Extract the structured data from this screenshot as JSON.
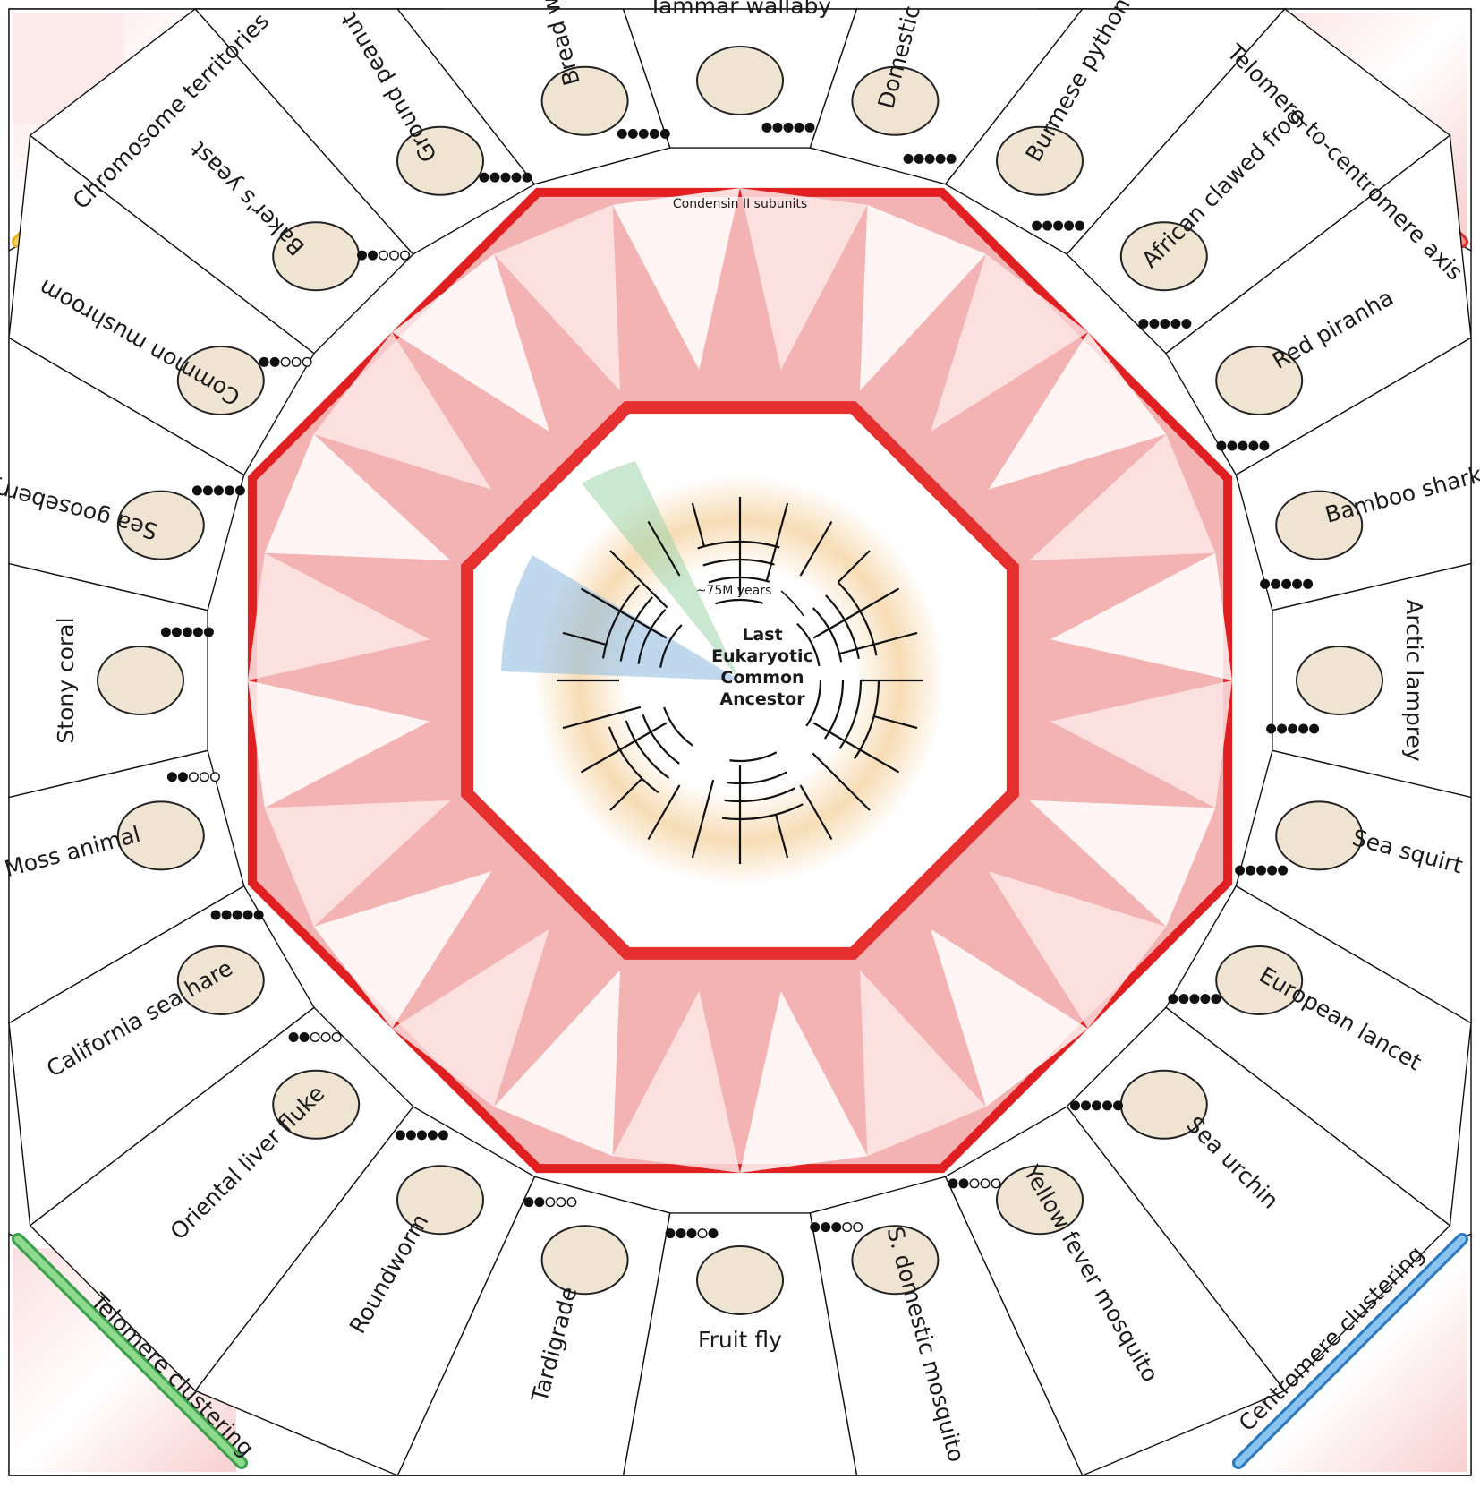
{
  "center": {
    "title_lines": [
      "Last",
      "Eukaryotic",
      "Common",
      "Ancestor"
    ],
    "scale_label": "~75M years"
  },
  "corners": {
    "top_left": "Chromosome territories",
    "top_right": "Telomere-to-centromere axis",
    "bottom_left": "Telomere clustering",
    "bottom_right": "Centromere clustering"
  },
  "condensin_label": "Condensin II subunits",
  "species": [
    {
      "name": "Tammar wallaby",
      "dots": [
        1,
        1,
        1,
        1,
        1
      ]
    },
    {
      "name": "Domestic chicken",
      "dots": [
        1,
        1,
        1,
        1,
        1
      ]
    },
    {
      "name": "Burmese python",
      "dots": [
        1,
        1,
        1,
        1,
        1
      ]
    },
    {
      "name": "African clawed frog",
      "dots": [
        1,
        1,
        1,
        1,
        1
      ]
    },
    {
      "name": "Red piranha",
      "dots": [
        1,
        1,
        1,
        1,
        1
      ]
    },
    {
      "name": "Bamboo shark",
      "dots": [
        1,
        1,
        1,
        1,
        1
      ]
    },
    {
      "name": "Arctic lamprey",
      "dots": [
        1,
        1,
        1,
        1,
        1
      ]
    },
    {
      "name": "Sea squirt",
      "dots": [
        1,
        1,
        1,
        1,
        1
      ]
    },
    {
      "name": "European lancet",
      "dots": [
        1,
        1,
        1,
        1,
        1
      ]
    },
    {
      "name": "Sea urchin",
      "dots": [
        1,
        1,
        1,
        1,
        1
      ]
    },
    {
      "name": "Yellow fever mosquito",
      "dots": [
        1,
        1,
        0,
        0,
        0
      ]
    },
    {
      "name": "S. domestic mosquito",
      "dots": [
        1,
        1,
        1,
        0,
        0
      ]
    },
    {
      "name": "Fruit fly",
      "dots": [
        1,
        1,
        1,
        0,
        1
      ]
    },
    {
      "name": "Tardigrade",
      "dots": [
        1,
        1,
        0,
        0,
        0
      ]
    },
    {
      "name": "Roundworm",
      "dots": [
        1,
        1,
        1,
        1,
        1
      ]
    },
    {
      "name": "Oriental liver fluke",
      "dots": [
        1,
        1,
        0,
        0,
        0
      ]
    },
    {
      "name": "California sea hare",
      "dots": [
        1,
        1,
        1,
        1,
        1
      ]
    },
    {
      "name": "Moss animal",
      "dots": [
        1,
        1,
        0,
        0,
        0
      ]
    },
    {
      "name": "Stony coral",
      "dots": [
        1,
        1,
        1,
        1,
        1
      ]
    },
    {
      "name": "Sea gooseberry",
      "dots": [
        1,
        1,
        1,
        1,
        1
      ]
    },
    {
      "name": "Common mushroom",
      "dots": [
        1,
        1,
        0,
        0,
        0
      ]
    },
    {
      "name": "Baker's yeast",
      "dots": [
        1,
        1,
        0,
        0,
        0
      ]
    },
    {
      "name": "Ground peanut",
      "dots": [
        1,
        1,
        1,
        1,
        1
      ]
    },
    {
      "name": "Bread wheat",
      "dots": [
        1,
        1,
        1,
        1,
        1
      ]
    }
  ],
  "colors": {
    "heatmap": "#e02020",
    "tree_band": "#f5d9b0",
    "clade_green": "#8fcc9b",
    "clade_blue": "#7fb0d9",
    "outline": "#111111"
  }
}
